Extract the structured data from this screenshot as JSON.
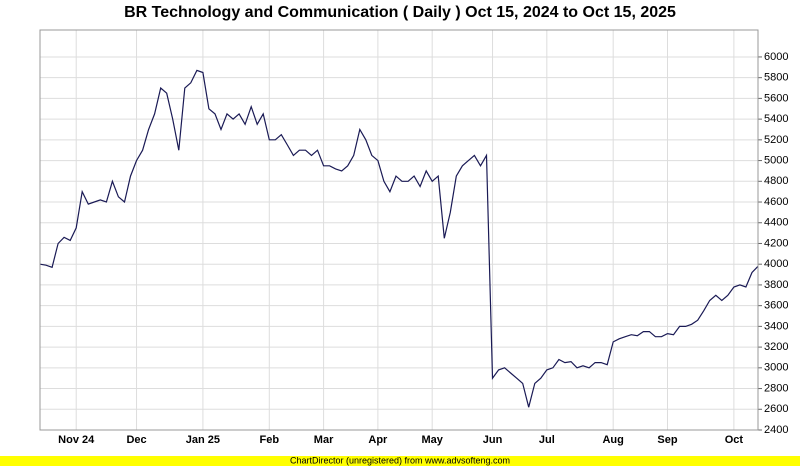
{
  "chart_data": {
    "type": "line",
    "title": "BR Technology and Communication ( Daily ) Oct 15, 2024 to Oct 15, 2025",
    "categories": [
      null,
      null,
      null,
      null,
      null,
      null,
      "Nov 24",
      null,
      null,
      null,
      null,
      null,
      null,
      null,
      null,
      null,
      "Dec",
      null,
      null,
      null,
      null,
      null,
      null,
      null,
      null,
      null,
      null,
      "Jan 25",
      null,
      null,
      null,
      null,
      null,
      null,
      null,
      null,
      null,
      null,
      "Feb",
      null,
      null,
      null,
      null,
      null,
      null,
      null,
      null,
      "Mar",
      null,
      null,
      null,
      null,
      null,
      null,
      null,
      null,
      "Apr",
      null,
      null,
      null,
      null,
      null,
      null,
      null,
      null,
      "May",
      null,
      null,
      null,
      null,
      null,
      null,
      null,
      null,
      null,
      "Jun",
      null,
      null,
      null,
      null,
      null,
      null,
      null,
      null,
      "Jul",
      null,
      null,
      null,
      null,
      null,
      null,
      null,
      null,
      null,
      null,
      "Aug",
      null,
      null,
      null,
      null,
      null,
      null,
      null,
      null,
      "Sep",
      null,
      null,
      null,
      null,
      null,
      null,
      null,
      null,
      null,
      null,
      "Oct",
      null,
      null,
      null,
      null
    ],
    "values": [
      4000,
      3990,
      3970,
      4200,
      4260,
      4230,
      4350,
      4700,
      4580,
      4600,
      4620,
      4600,
      4800,
      4650,
      4600,
      4850,
      5000,
      5100,
      5300,
      5450,
      5700,
      5650,
      5400,
      5100,
      5700,
      5750,
      5870,
      5850,
      5500,
      5450,
      5300,
      5450,
      5400,
      5450,
      5350,
      5520,
      5350,
      5450,
      5200,
      5200,
      5250,
      5150,
      5050,
      5100,
      5100,
      5050,
      5100,
      4950,
      4950,
      4920,
      4900,
      4950,
      5050,
      5300,
      5200,
      5050,
      5000,
      4800,
      4700,
      4850,
      4800,
      4800,
      4850,
      4750,
      4900,
      4800,
      4850,
      4250,
      4500,
      4850,
      4950,
      5000,
      5050,
      4950,
      5050,
      2900,
      2980,
      3000,
      2950,
      2900,
      2850,
      2620,
      2850,
      2900,
      2980,
      3000,
      3080,
      3050,
      3060,
      3000,
      3020,
      3000,
      3050,
      3050,
      3030,
      3250,
      3280,
      3300,
      3320,
      3310,
      3350,
      3350,
      3300,
      3300,
      3330,
      3320,
      3400,
      3400,
      3420,
      3460,
      3550,
      3650,
      3700,
      3650,
      3700,
      3780,
      3800,
      3780,
      3920,
      3980
    ],
    "color": "#1a1a55",
    "ylim": [
      2400,
      6260
    ],
    "yticks": [
      2400,
      2600,
      2800,
      3000,
      3200,
      3400,
      3600,
      3800,
      4000,
      4200,
      4400,
      4600,
      4800,
      5000,
      5200,
      5400,
      5600,
      5800,
      6000
    ],
    "grid": true
  },
  "footer": "ChartDirector (unregistered) from www.advsofteng.com"
}
